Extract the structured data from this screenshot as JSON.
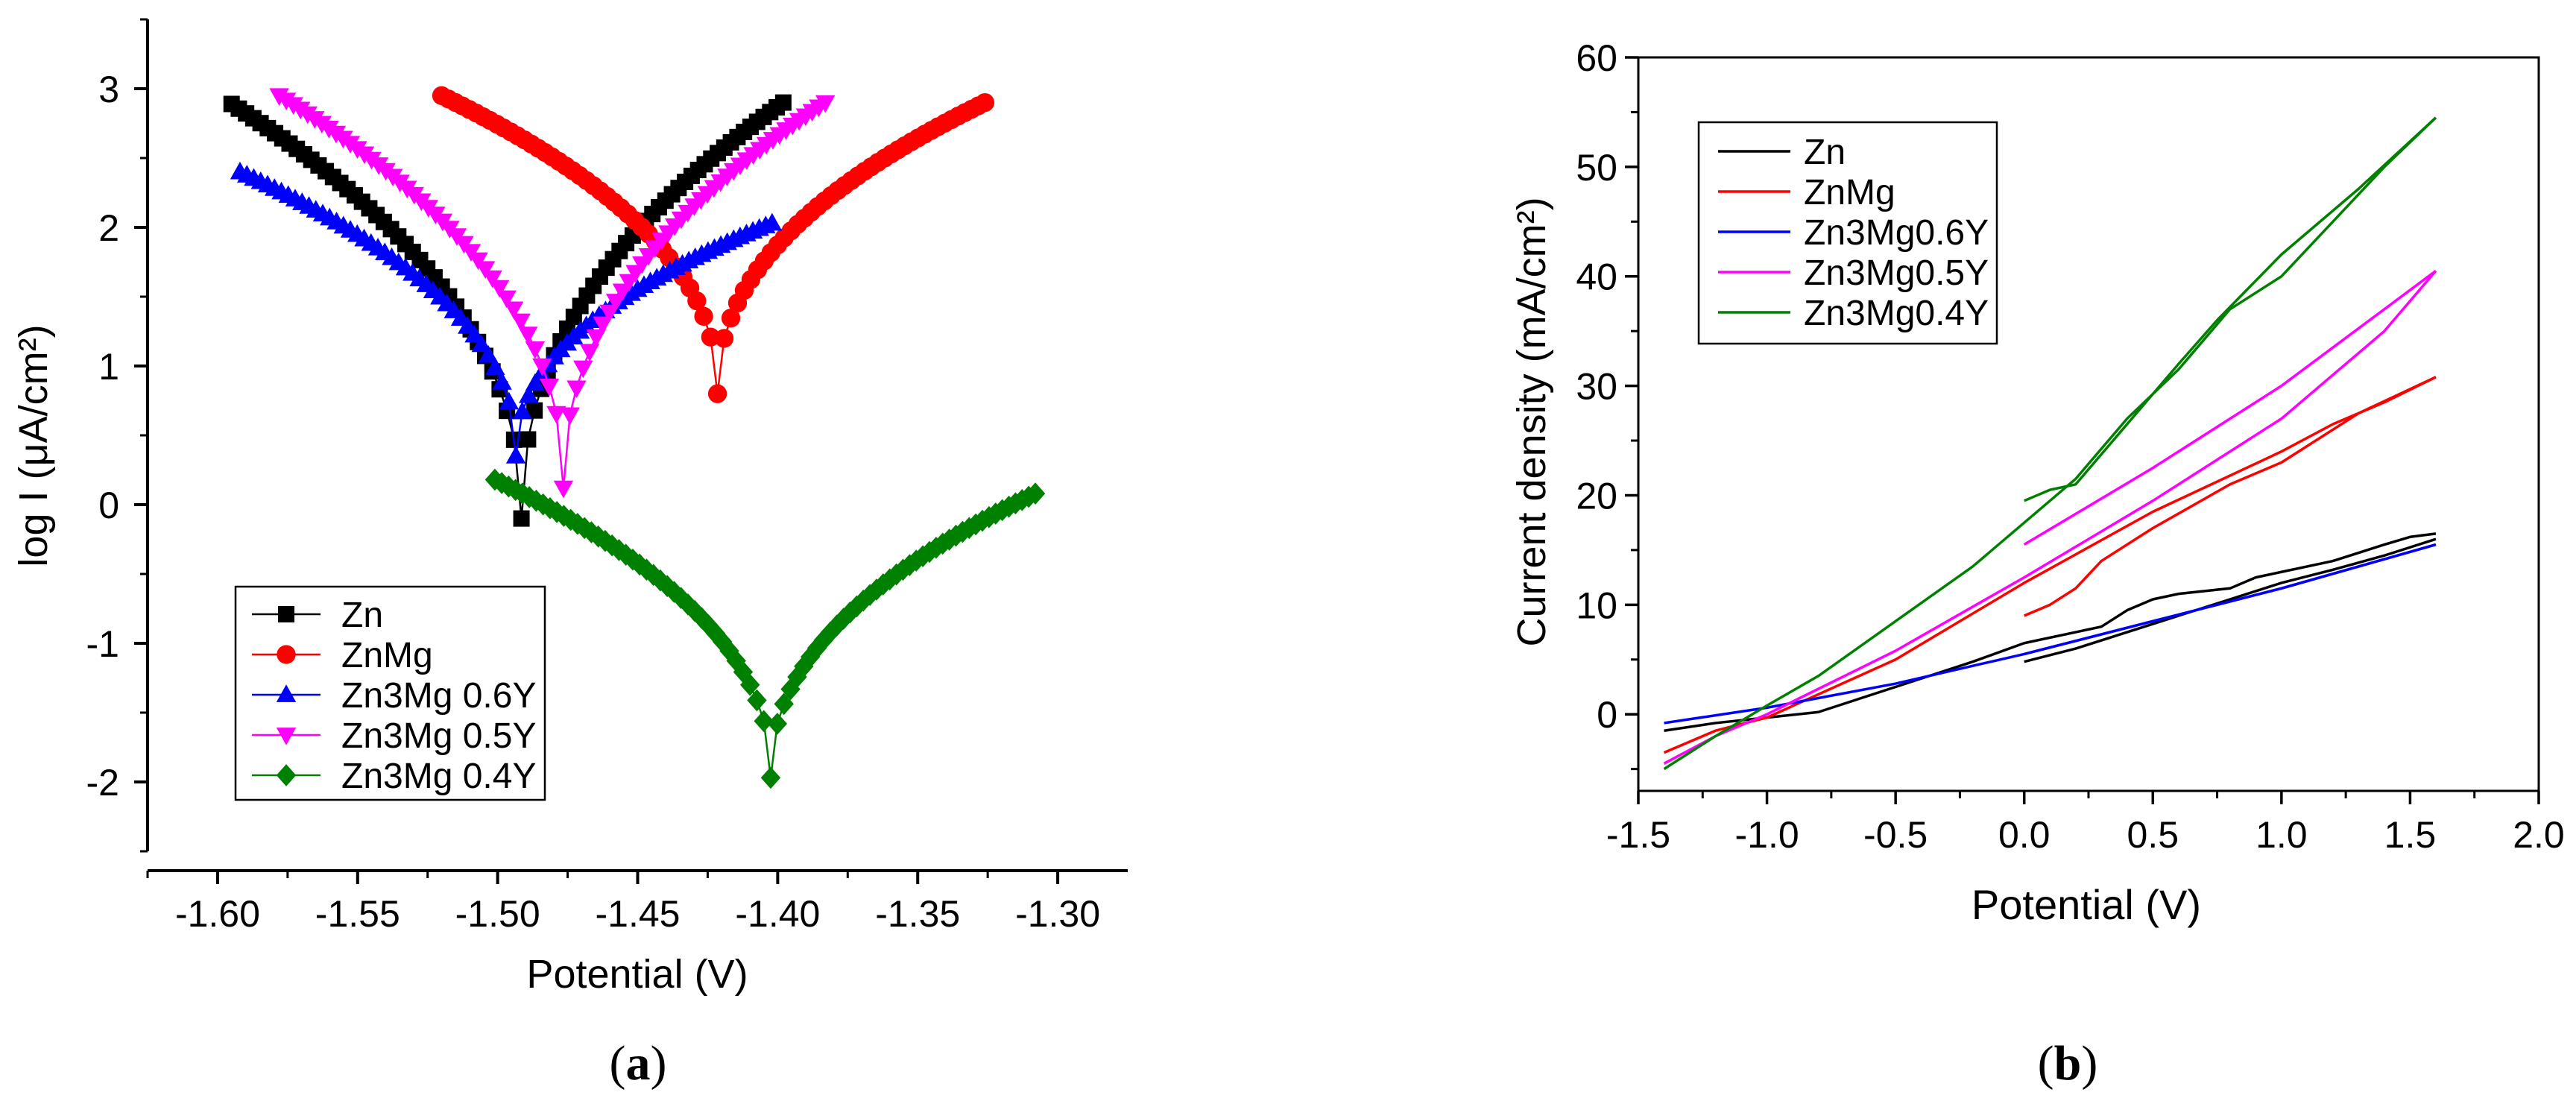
{
  "chart_data": [
    {
      "type": "scatter",
      "panel_label": "(a)",
      "panel_letter": "a",
      "xlabel": "Potential (V)",
      "ylabel": "log I (μA/cm²)",
      "xlim": [
        -1.625,
        -1.275
      ],
      "ylim": [
        -2.5,
        3.5
      ],
      "xticks": [
        -1.6,
        -1.55,
        -1.5,
        -1.45,
        -1.4,
        -1.35,
        -1.3
      ],
      "xtick_labels": [
        "-1.60",
        "-1.55",
        "-1.50",
        "-1.45",
        "-1.40",
        "-1.35",
        "-1.30"
      ],
      "yticks": [
        -2,
        -1,
        0,
        1,
        2,
        3
      ],
      "ytick_labels": [
        "-2",
        "-1",
        "0",
        "1",
        "2",
        "3"
      ],
      "legend_position": "bottom-left",
      "series": [
        {
          "name": "Zn",
          "color": "#000000",
          "marker": "square",
          "e_start": -1.595,
          "e_corr": -1.4915,
          "e_end": -1.398,
          "y_start": 2.89,
          "y_min": -0.1,
          "y_end": 2.9,
          "n_left": 40,
          "n_right": 40
        },
        {
          "name": "ZnMg",
          "color": "#ff0000",
          "marker": "circle",
          "e_start": -1.52,
          "e_corr": -1.4215,
          "e_end": -1.326,
          "y_start": 2.95,
          "y_min": 0.8,
          "y_end": 2.9,
          "n_left": 40,
          "n_right": 40
        },
        {
          "name": "Zn3Mg 0.6Y",
          "color": "#0000ff",
          "marker": "triangle-up",
          "e_start": -1.592,
          "e_corr": -1.4935,
          "e_end": -1.402,
          "y_start": 2.4,
          "y_min": 0.35,
          "y_end": 2.03,
          "n_left": 40,
          "n_right": 40
        },
        {
          "name": "Zn3Mg 0.5Y",
          "color": "#ff00ff",
          "marker": "triangle-down",
          "e_start": -1.578,
          "e_corr": -1.4765,
          "e_end": -1.383,
          "y_start": 2.95,
          "y_min": 0.12,
          "y_end": 2.9,
          "n_left": 40,
          "n_right": 40
        },
        {
          "name": "Zn3Mg 0.4Y",
          "color": "#008000",
          "marker": "diamond",
          "e_start": -1.501,
          "e_corr": -1.4025,
          "e_end": -1.308,
          "y_start": 0.18,
          "y_min": -1.97,
          "y_end": 0.08,
          "n_left": 40,
          "n_right": 40
        }
      ]
    },
    {
      "type": "line",
      "panel_label": "(b)",
      "panel_letter": "b",
      "xlabel": "Potential (V)",
      "ylabel": "Current density (mA/cm²)",
      "xlim": [
        -1.5,
        2.0
      ],
      "ylim": [
        -7,
        60
      ],
      "xticks": [
        -1.5,
        -1.0,
        -0.5,
        0.0,
        0.5,
        1.0,
        1.5,
        2.0
      ],
      "xtick_labels": [
        "-1.5",
        "-1.0",
        "-0.5",
        "0.0",
        "0.5",
        "1.0",
        "1.5",
        "2.0"
      ],
      "yticks": [
        0,
        10,
        20,
        30,
        40,
        50,
        60
      ],
      "ytick_labels": [
        "0",
        "10",
        "20",
        "30",
        "40",
        "50",
        "60"
      ],
      "legend_position": "top-left",
      "series": [
        {
          "name": "Zn",
          "color": "#000000",
          "forward": [
            [
              -1.4,
              -1.5
            ],
            [
              -1.2,
              -0.8
            ],
            [
              -1.0,
              -0.3
            ],
            [
              -0.8,
              0.2
            ],
            [
              -0.5,
              2.5
            ],
            [
              -0.2,
              4.8
            ],
            [
              0.0,
              6.5
            ],
            [
              0.2,
              7.5
            ],
            [
              0.3,
              8.0
            ],
            [
              0.4,
              9.5
            ],
            [
              0.5,
              10.5
            ],
            [
              0.6,
              11.0
            ],
            [
              0.8,
              11.5
            ],
            [
              0.9,
              12.5
            ],
            [
              1.0,
              13.0
            ],
            [
              1.2,
              14.0
            ],
            [
              1.4,
              15.5
            ],
            [
              1.5,
              16.2
            ],
            [
              1.6,
              16.5
            ]
          ],
          "reverse": [
            [
              1.6,
              16.0
            ],
            [
              1.4,
              14.5
            ],
            [
              1.2,
              13.2
            ],
            [
              1.0,
              12.0
            ],
            [
              0.8,
              10.5
            ],
            [
              0.6,
              9.0
            ],
            [
              0.4,
              7.5
            ],
            [
              0.2,
              6.0
            ],
            [
              0.0,
              4.8
            ]
          ]
        },
        {
          "name": "ZnMg",
          "color": "#ff0000",
          "forward": [
            [
              -1.4,
              -3.5
            ],
            [
              -1.2,
              -1.5
            ],
            [
              -1.0,
              -0.3
            ],
            [
              -0.5,
              5.0
            ],
            [
              0.0,
              12.0
            ],
            [
              0.5,
              18.5
            ],
            [
              1.0,
              24.0
            ],
            [
              1.2,
              26.5
            ],
            [
              1.4,
              28.5
            ],
            [
              1.6,
              30.8
            ]
          ],
          "reverse": [
            [
              1.6,
              30.8
            ],
            [
              1.3,
              27.5
            ],
            [
              1.1,
              24.5
            ],
            [
              1.0,
              23.0
            ],
            [
              0.8,
              21.0
            ],
            [
              0.5,
              17.0
            ],
            [
              0.3,
              14.0
            ],
            [
              0.2,
              11.5
            ],
            [
              0.1,
              10.0
            ],
            [
              0.0,
              9.0
            ]
          ]
        },
        {
          "name": "Zn3Mg0.6Y",
          "color": "#0000ff",
          "forward": [
            [
              -1.4,
              -0.8
            ],
            [
              -1.0,
              0.6
            ],
            [
              -0.5,
              2.8
            ],
            [
              0.0,
              5.5
            ],
            [
              0.5,
              8.5
            ],
            [
              1.0,
              11.5
            ],
            [
              1.6,
              15.5
            ]
          ],
          "reverse": [
            [
              1.6,
              15.5
            ],
            [
              1.0,
              11.5
            ],
            [
              0.5,
              8.5
            ],
            [
              0.0,
              5.5
            ]
          ]
        },
        {
          "name": "Zn3Mg0.5Y",
          "color": "#ff00ff",
          "forward": [
            [
              -1.4,
              -4.5
            ],
            [
              -1.2,
              -2.0
            ],
            [
              -1.0,
              0.0
            ],
            [
              -0.5,
              5.8
            ],
            [
              0.0,
              12.5
            ],
            [
              0.5,
              19.5
            ],
            [
              1.0,
              27.0
            ],
            [
              1.4,
              35.0
            ],
            [
              1.6,
              40.5
            ]
          ],
          "reverse": [
            [
              1.6,
              40.5
            ],
            [
              1.4,
              37.0
            ],
            [
              1.2,
              33.5
            ],
            [
              1.0,
              30.0
            ],
            [
              0.5,
              22.5
            ],
            [
              0.0,
              15.5
            ]
          ]
        },
        {
          "name": "Zn3Mg0.4Y",
          "color": "#008000",
          "forward": [
            [
              -1.4,
              -5.0
            ],
            [
              -1.2,
              -2.0
            ],
            [
              -1.0,
              0.8
            ],
            [
              -0.8,
              3.5
            ],
            [
              -0.5,
              8.5
            ],
            [
              -0.2,
              13.5
            ],
            [
              0.0,
              17.5
            ],
            [
              0.2,
              21.5
            ],
            [
              0.4,
              27.0
            ],
            [
              0.6,
              31.5
            ],
            [
              0.8,
              37.0
            ],
            [
              1.0,
              40.0
            ],
            [
              1.2,
              45.0
            ],
            [
              1.4,
              50.0
            ],
            [
              1.6,
              54.5
            ]
          ],
          "reverse": [
            [
              1.6,
              54.5
            ],
            [
              1.3,
              48.0
            ],
            [
              1.0,
              42.0
            ],
            [
              0.75,
              36.0
            ],
            [
              0.6,
              32.0
            ],
            [
              0.4,
              26.5
            ],
            [
              0.2,
              21.0
            ],
            [
              0.1,
              20.5
            ],
            [
              0.0,
              19.5
            ]
          ]
        }
      ]
    }
  ]
}
